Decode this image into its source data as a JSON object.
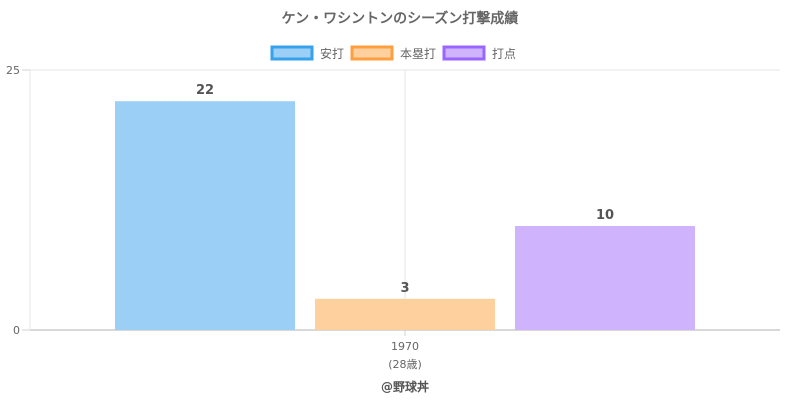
{
  "chart_data": {
    "type": "bar",
    "title": "ケン・ワシントンのシーズン打撃成績",
    "categories": [
      "1970"
    ],
    "category_sublabels": [
      "(28歳)"
    ],
    "series": [
      {
        "name": "安打",
        "values": [
          22
        ],
        "fill": "#9ccff5",
        "stroke": "#36a2eb"
      },
      {
        "name": "本塁打",
        "values": [
          3
        ],
        "fill": "#fdd09e",
        "stroke": "#ff9f40"
      },
      {
        "name": "打点",
        "values": [
          10
        ],
        "fill": "#cfb3fd",
        "stroke": "#9966ff"
      }
    ],
    "ylim": [
      0,
      25
    ],
    "y_ticks": [
      "0",
      "25"
    ],
    "legend_position": "top",
    "grid": true
  },
  "credit": "@野球丼"
}
